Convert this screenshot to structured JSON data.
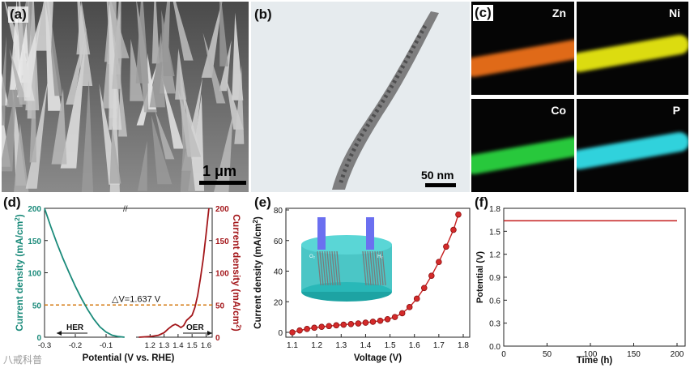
{
  "panels": {
    "a": {
      "label": "(a)",
      "scale_text": "1 μm"
    },
    "b": {
      "label": "(b)",
      "scale_text": "50 nm"
    },
    "c": {
      "label": "(c)",
      "elements": [
        "Zn",
        "Ni",
        "Co",
        "P"
      ],
      "colors": [
        "#e06a18",
        "#dcdc10",
        "#28c83c",
        "#30d2dc"
      ]
    },
    "d": {
      "label": "(d)",
      "left_axis_label": "Current density (mA/cm",
      "left_axis_sup": "2",
      "left_axis_close": ")",
      "right_axis_label": "Current density (mA/cm",
      "right_axis_sup": "2",
      "right_axis_close": ")",
      "xlabel": "Potential (V vs. RHE)",
      "annotation": "△V=1.637 V",
      "her_label": "HER",
      "oer_label": "OER",
      "axis_break": "//"
    },
    "e": {
      "label": "(e)",
      "ylabel_main": "Current density (mA/cm",
      "ylabel_sup": "2",
      "ylabel_close": ")",
      "xlabel": "Voltage (V)",
      "inset_left": "O₂",
      "inset_right": "H₂"
    },
    "f": {
      "label": "(f)",
      "ylabel": "Potential (V)",
      "xlabel": "Time (h)"
    }
  },
  "chart_data": [
    {
      "type": "line",
      "panel": "d",
      "title": "",
      "xlabel": "Potential (V vs. RHE)",
      "ylabel": "Current density (mA/cm2)",
      "x_ticks": [
        "-0.3",
        "-0.2",
        "-0.1",
        "1.2",
        "1.3",
        "1.4",
        "1.5",
        "1.6"
      ],
      "y_ticks_left": [
        "0",
        "50",
        "100",
        "150",
        "200"
      ],
      "y_ticks_right": [
        "0",
        "50",
        "100",
        "150",
        "200"
      ],
      "ylim": [
        0,
        200
      ],
      "series": [
        {
          "color": "#1a8a7a",
          "x": [
            -0.3,
            -0.28,
            -0.26,
            -0.24,
            -0.22,
            -0.2,
            -0.18,
            -0.16,
            -0.14,
            -0.12,
            -0.1,
            -0.08,
            -0.06,
            -0.04
          ],
          "y": [
            200,
            172,
            146,
            122,
            100,
            79,
            60,
            43,
            28,
            16,
            8,
            3,
            1,
            0
          ]
        },
        {
          "color": "#a3161a",
          "x": [
            1.12,
            1.2,
            1.26,
            1.3,
            1.33,
            1.36,
            1.38,
            1.4,
            1.42,
            1.44,
            1.46,
            1.48,
            1.5,
            1.52,
            1.54,
            1.56,
            1.58,
            1.6,
            1.62
          ],
          "y": [
            0,
            1,
            3,
            7,
            13,
            18,
            20,
            18,
            15,
            18,
            26,
            30,
            34,
            46,
            65,
            92,
            122,
            160,
            200
          ]
        }
      ],
      "reference_line": {
        "y": 50,
        "color": "#d47a10"
      }
    },
    {
      "type": "line",
      "panel": "e",
      "title": "",
      "xlabel": "Voltage (V)",
      "ylabel": "Current density (mA/cm2)",
      "xlim": [
        1.1,
        1.8
      ],
      "ylim": [
        0,
        80
      ],
      "x_ticks": [
        "1.1",
        "1.2",
        "1.3",
        "1.4",
        "1.5",
        "1.6",
        "1.7",
        "1.8"
      ],
      "y_ticks": [
        "0",
        "20",
        "40",
        "60",
        "80"
      ],
      "series": [
        {
          "color": "#c62020",
          "x": [
            1.1,
            1.13,
            1.16,
            1.19,
            1.22,
            1.25,
            1.28,
            1.31,
            1.34,
            1.37,
            1.4,
            1.43,
            1.46,
            1.49,
            1.52,
            1.55,
            1.58,
            1.61,
            1.64,
            1.67,
            1.7,
            1.73,
            1.76,
            1.78
          ],
          "y": [
            0,
            1.2,
            2.2,
            3.0,
            3.6,
            4.1,
            4.6,
            5.0,
            5.4,
            5.8,
            6.3,
            6.9,
            7.6,
            8.6,
            10.0,
            12.5,
            16.5,
            22.0,
            29.0,
            37.0,
            46.0,
            56.0,
            67.0,
            77.0
          ]
        }
      ]
    },
    {
      "type": "line",
      "panel": "f",
      "title": "",
      "xlabel": "Time (h)",
      "ylabel": "Potential (V)",
      "xlim": [
        0,
        200
      ],
      "ylim": [
        0,
        1.8
      ],
      "x_ticks": [
        "0",
        "50",
        "100",
        "150",
        "200"
      ],
      "y_ticks": [
        "0.0",
        "0.3",
        "0.6",
        "0.9",
        "1.2",
        "1.5",
        "1.8"
      ],
      "series": [
        {
          "color": "#c41c1c",
          "x": [
            0,
            200
          ],
          "y": [
            1.637,
            1.637
          ]
        }
      ]
    }
  ],
  "watermark": "八戒科普"
}
